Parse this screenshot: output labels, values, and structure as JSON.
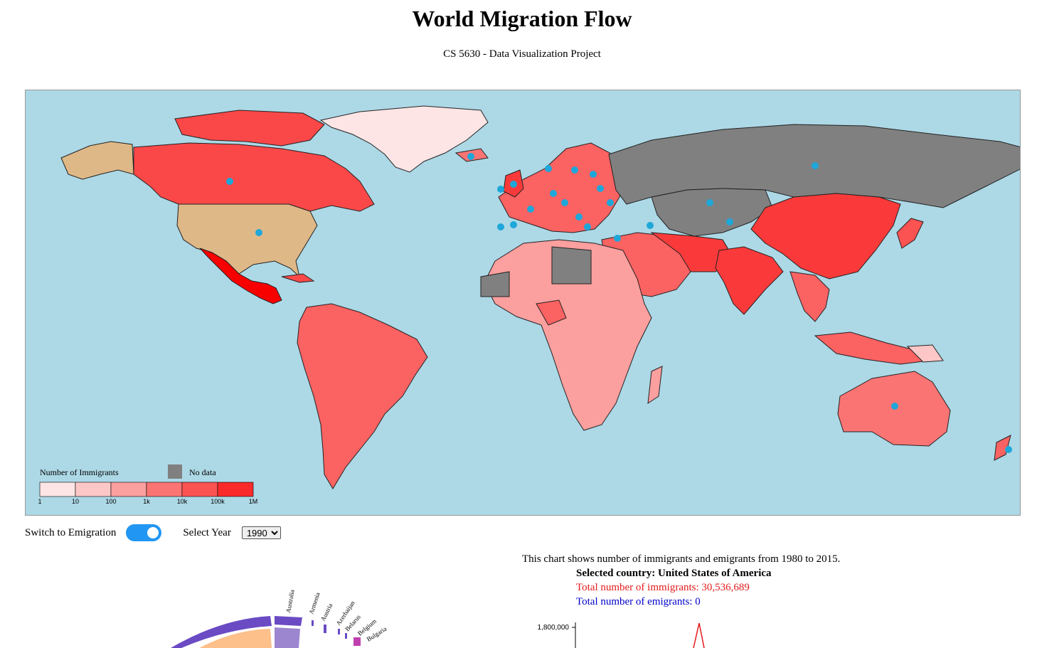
{
  "header": {
    "title": "World Migration Flow",
    "subtitle": "CS 5630 - Data Visualization Project"
  },
  "legend": {
    "title": "Number of Immigrants",
    "no_data_label": "No data",
    "ticks": [
      "1",
      "10",
      "100",
      "1k",
      "10k",
      "100k",
      "1M"
    ],
    "colors": [
      "#fee5e5",
      "#fdc7c7",
      "#fc9f9f",
      "#fb7474",
      "#fb5252",
      "#fa2a2a",
      "#f80000"
    ],
    "no_data_color": "#808080"
  },
  "controls": {
    "switch_label": "Switch to Emigration",
    "switch_on": true,
    "year_label": "Select Year",
    "year_value": "1990"
  },
  "info": {
    "description": "This chart shows number of immigrants and emigrants from 1980 to 2015.",
    "selected_country": "Selected country: United States of America",
    "total_immigrants": "Total number of immigrants: 30,536,689",
    "total_emigrants": "Total number of emigrants: 0"
  },
  "chord": {
    "labels": [
      "Australia",
      "Armenia",
      "Austria",
      "Azerbaijan",
      "Belarus",
      "Belgium",
      "Bulgaria"
    ]
  },
  "line_chart": {
    "y_tick": "1,800,000"
  },
  "colors": {
    "ocean": "#add8e6",
    "selected_country": "#deb887",
    "marker": "#1ea7d9"
  }
}
